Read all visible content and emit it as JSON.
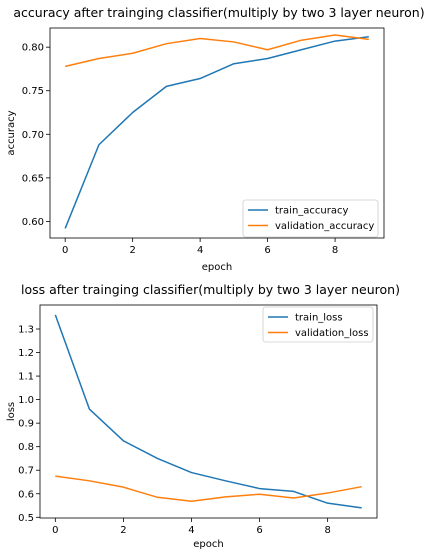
{
  "chart_data": [
    {
      "type": "line",
      "title": "accuracy after trainging classifier(multiply by two 3 layer neuron)",
      "xlabel": "epoch",
      "ylabel": "accuracy",
      "x": [
        0,
        1,
        2,
        3,
        4,
        5,
        6,
        7,
        8,
        9
      ],
      "xlim": [
        -0.45,
        9.45
      ],
      "ylim": [
        0.581,
        0.822
      ],
      "xticks": [
        0,
        2,
        4,
        6,
        8
      ],
      "yticks": [
        0.6,
        0.65,
        0.7,
        0.75,
        0.8
      ],
      "ytick_labels": [
        "0.60",
        "0.65",
        "0.70",
        "0.75",
        "0.80"
      ],
      "legend_position": "lower-right",
      "grid": false,
      "series": [
        {
          "name": "train_accuracy",
          "color": "#1f77b4",
          "values": [
            0.592,
            0.688,
            0.725,
            0.755,
            0.764,
            0.781,
            0.787,
            0.797,
            0.807,
            0.812
          ]
        },
        {
          "name": "validation_accuracy",
          "color": "#ff7f0e",
          "values": [
            0.778,
            0.787,
            0.793,
            0.804,
            0.81,
            0.806,
            0.797,
            0.808,
            0.814,
            0.809
          ]
        }
      ]
    },
    {
      "type": "line",
      "title": "loss after trainging classifier(multiply by two 3 layer neuron)",
      "xlabel": "epoch",
      "ylabel": "loss",
      "x": [
        0,
        1,
        2,
        3,
        4,
        5,
        6,
        7,
        8,
        9
      ],
      "xlim": [
        -0.45,
        9.45
      ],
      "ylim": [
        0.497,
        1.402
      ],
      "xticks": [
        0,
        2,
        4,
        6,
        8
      ],
      "yticks": [
        0.5,
        0.6,
        0.7,
        0.8,
        0.9,
        1.0,
        1.1,
        1.2,
        1.3
      ],
      "ytick_labels": [
        "0.5",
        "0.6",
        "0.7",
        "0.8",
        "0.9",
        "1.0",
        "1.1",
        "1.2",
        "1.3"
      ],
      "legend_position": "upper-right",
      "grid": false,
      "series": [
        {
          "name": "train_loss",
          "color": "#1f77b4",
          "values": [
            1.36,
            0.96,
            0.825,
            0.75,
            0.69,
            0.655,
            0.622,
            0.61,
            0.56,
            0.54
          ]
        },
        {
          "name": "validation_loss",
          "color": "#ff7f0e",
          "values": [
            0.675,
            0.655,
            0.628,
            0.585,
            0.568,
            0.587,
            0.598,
            0.582,
            0.603,
            0.63
          ]
        }
      ]
    }
  ]
}
